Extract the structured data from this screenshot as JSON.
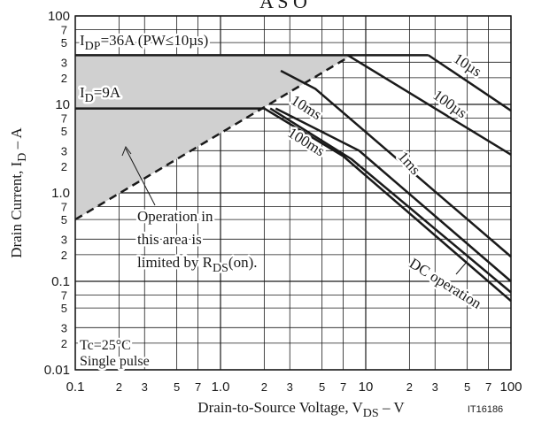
{
  "chart_data": {
    "type": "line",
    "title": "A S O",
    "x_label": {
      "main": "Drain-to-Source Voltage, V",
      "sub": "DS",
      "rest": " – V"
    },
    "y_label": {
      "main": "Drain Current, I",
      "sub": "D",
      "rest": " – A"
    },
    "code": "IT16186",
    "log_x": true,
    "log_y": true,
    "grid": true,
    "xlim": [
      0.1,
      100
    ],
    "ylim": [
      0.01,
      100
    ],
    "xticks": [
      0.1,
      {
        "value": 0.2,
        "label": "2"
      },
      {
        "value": 0.3,
        "label": "3"
      },
      {
        "value": 0.5,
        "label": "5"
      },
      {
        "value": 0.7,
        "label": "7"
      },
      {
        "value": 1,
        "label": "1.0"
      },
      2,
      3,
      5,
      7,
      10,
      {
        "value": 20,
        "label": "2"
      },
      {
        "value": 30,
        "label": "3"
      },
      {
        "value": 50,
        "label": "5"
      },
      {
        "value": 70,
        "label": "7"
      },
      100
    ],
    "yticks": [
      0.01,
      {
        "value": 0.02,
        "label": "2"
      },
      {
        "value": 0.03,
        "label": "3"
      },
      {
        "value": 0.05,
        "label": "5"
      },
      {
        "value": 0.07,
        "label": "7"
      },
      0.1,
      {
        "value": 0.2,
        "label": "2"
      },
      {
        "value": 0.3,
        "label": "3"
      },
      {
        "value": 0.5,
        "label": "5"
      },
      {
        "value": 0.7,
        "label": "7"
      },
      {
        "value": 1,
        "label": "1.0"
      },
      2,
      3,
      5,
      7,
      10,
      {
        "value": 20,
        "label": "2"
      },
      {
        "value": 30,
        "label": "3"
      },
      {
        "value": 50,
        "label": "5"
      },
      {
        "value": 70,
        "label": "7"
      },
      100
    ],
    "idp_limit": {
      "label": {
        "main": "I",
        "sub": "DP",
        "rest": "=36A (PW≤10µs)"
      },
      "x": [
        0.1,
        27
      ],
      "values": [
        36,
        36
      ]
    },
    "id_limit": {
      "label": {
        "main": "I",
        "sub": "D",
        "rest": "=9A"
      },
      "x": [
        0.1,
        2
      ],
      "values": [
        9,
        9
      ]
    },
    "rds_limit": {
      "x": [
        0.1,
        8
      ],
      "values": [
        0.5,
        36
      ],
      "dashed": true
    },
    "series": [
      {
        "name": "10µs",
        "color": "#1a1a1a",
        "x": [
          27,
          100
        ],
        "values": [
          36,
          8.5
        ]
      },
      {
        "name": "100µs",
        "color": "#1a1a1a",
        "x": [
          7.5,
          100
        ],
        "values": [
          36,
          2.7
        ]
      },
      {
        "name": "1ms",
        "color": "#1a1a1a",
        "x": [
          2.6,
          4.5,
          100
        ],
        "values": [
          24,
          15,
          0.19
        ]
      },
      {
        "name": "10ms",
        "color": "#1a1a1a",
        "x": [
          2.4,
          9,
          100
        ],
        "values": [
          9,
          3,
          0.1
        ]
      },
      {
        "name": "100ms",
        "color": "#1a1a1a",
        "x": [
          2.2,
          8,
          100
        ],
        "values": [
          9,
          2.4,
          0.075
        ]
      },
      {
        "name": "DC operation",
        "color": "#1a1a1a",
        "x": [
          2,
          7,
          100
        ],
        "values": [
          9,
          2.6,
          0.06
        ]
      }
    ],
    "rds_note": {
      "line1": "Operation in",
      "line2": "this area is",
      "line3": "limited by R",
      "line3_sub": "DS",
      "line3_rest": "(on)."
    },
    "conditions": [
      "Tc=25°C",
      "Single pulse"
    ]
  }
}
